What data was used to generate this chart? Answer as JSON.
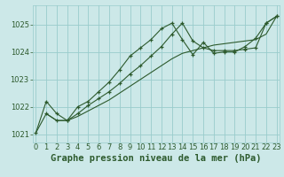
{
  "background_color": "#cce8e8",
  "plot_bg_color": "#cce8e8",
  "grid_color": "#99cccc",
  "line_color": "#2d5a2d",
  "xlabel": "Graphe pression niveau de la mer (hPa)",
  "xlabel_fontsize": 7.5,
  "tick_fontsize": 6,
  "ylim": [
    1020.7,
    1025.7
  ],
  "xlim": [
    -0.3,
    23.3
  ],
  "yticks": [
    1021,
    1022,
    1023,
    1024,
    1025
  ],
  "xticks": [
    0,
    1,
    2,
    3,
    4,
    5,
    6,
    7,
    8,
    9,
    10,
    11,
    12,
    13,
    14,
    15,
    16,
    17,
    18,
    19,
    20,
    21,
    22,
    23
  ],
  "series1_x": [
    0,
    1,
    2,
    3,
    4,
    5,
    6,
    7,
    8,
    9,
    10,
    11,
    12,
    13,
    14,
    15,
    16,
    17,
    18,
    19,
    20,
    21,
    22,
    23
  ],
  "series1_y": [
    1021.05,
    1022.2,
    1021.75,
    1021.5,
    1022.0,
    1022.2,
    1022.55,
    1022.9,
    1023.35,
    1023.85,
    1024.15,
    1024.45,
    1024.85,
    1025.05,
    1024.45,
    1023.9,
    1024.35,
    1023.95,
    1024.0,
    1024.0,
    1024.2,
    1024.5,
    1025.05,
    1025.3
  ],
  "series2_x": [
    0,
    1,
    2,
    3,
    4,
    5,
    6,
    7,
    8,
    9,
    10,
    11,
    12,
    13,
    14,
    15,
    16,
    17,
    18,
    19,
    20,
    21,
    22,
    23
  ],
  "series2_y": [
    1021.05,
    1021.75,
    1021.5,
    1021.5,
    1021.65,
    1021.85,
    1022.05,
    1022.25,
    1022.5,
    1022.75,
    1023.0,
    1023.25,
    1023.5,
    1023.75,
    1023.95,
    1024.05,
    1024.15,
    1024.25,
    1024.3,
    1024.35,
    1024.4,
    1024.45,
    1024.65,
    1025.3
  ],
  "series3_x": [
    1,
    2,
    3,
    4,
    5,
    6,
    7,
    8,
    9,
    10,
    11,
    12,
    13,
    14,
    15,
    16,
    17,
    18,
    19,
    20,
    21,
    22,
    23
  ],
  "series3_y": [
    1021.75,
    1021.5,
    1021.5,
    1021.75,
    1022.05,
    1022.3,
    1022.55,
    1022.85,
    1023.2,
    1023.5,
    1023.85,
    1024.2,
    1024.65,
    1025.05,
    1024.4,
    1024.15,
    1024.05,
    1024.05,
    1024.05,
    1024.1,
    1024.15,
    1025.05,
    1025.3
  ]
}
